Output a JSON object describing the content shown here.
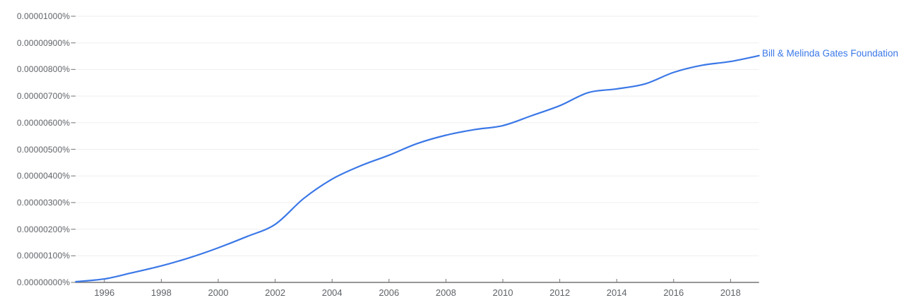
{
  "chart_data": {
    "type": "line",
    "title": "",
    "xlabel": "",
    "ylabel": "",
    "xlim": [
      1995,
      2019
    ],
    "ylim_e8": [
      0,
      1000
    ],
    "value_unit": "1e-8 percent (e.g. value 852 = 0.00000852%)",
    "grid": "horizontal-only, ends at plot right edge",
    "legend_position": "inline label at end of line",
    "y_ticks": [
      {
        "label": "0.00001000%",
        "value_e8": 1000
      },
      {
        "label": "0.00000900%",
        "value_e8": 900
      },
      {
        "label": "0.00000800%",
        "value_e8": 800
      },
      {
        "label": "0.00000700%",
        "value_e8": 700
      },
      {
        "label": "0.00000600%",
        "value_e8": 600
      },
      {
        "label": "0.00000500%",
        "value_e8": 500
      },
      {
        "label": "0.00000400%",
        "value_e8": 400
      },
      {
        "label": "0.00000300%",
        "value_e8": 300
      },
      {
        "label": "0.00000200%",
        "value_e8": 200
      },
      {
        "label": "0.00000100%",
        "value_e8": 100
      },
      {
        "label": "0.00000000%",
        "value_e8": 0
      }
    ],
    "x_ticks": [
      1996,
      1998,
      2000,
      2002,
      2004,
      2006,
      2008,
      2010,
      2012,
      2014,
      2016,
      2018
    ],
    "series": [
      {
        "name": "Bill & Melinda Gates Foundation",
        "color": "#3b78e7",
        "years": [
          1995,
          1996,
          1997,
          1998,
          1999,
          2000,
          2001,
          2002,
          2003,
          2004,
          2005,
          2006,
          2007,
          2008,
          2009,
          2010,
          2011,
          2012,
          2013,
          2014,
          2015,
          2016,
          2017,
          2018,
          2019
        ],
        "values_e8": [
          3,
          13,
          37,
          62,
          93,
          130,
          172,
          218,
          315,
          388,
          438,
          478,
          522,
          553,
          574,
          589,
          626,
          664,
          713,
          727,
          746,
          789,
          816,
          830,
          852
        ]
      }
    ],
    "colors": {
      "line": "#3b78e7",
      "series_label_text": "#3b78e7",
      "axis": "#757575",
      "tick_text": "#5f6368",
      "gridline": "#efefef",
      "y_tick_dash": "#8a8a8a",
      "background": "#ffffff"
    }
  }
}
